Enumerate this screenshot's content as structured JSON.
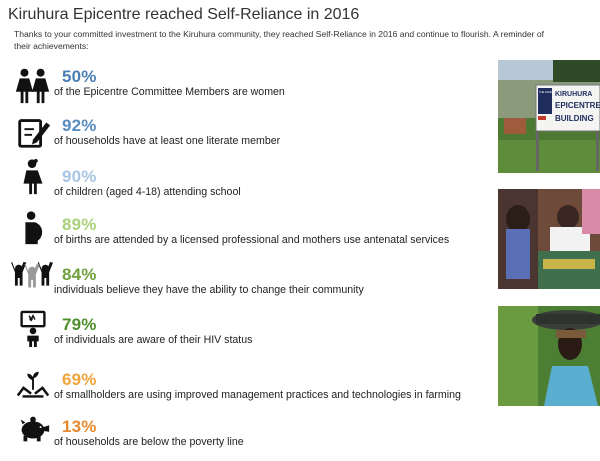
{
  "page": {
    "title": "Kiruhura Epicentre reached Self-Reliance in 2016",
    "intro_line1": "Thanks to your committed investment to the Kiruhura community, they reached Self-Reliance in 2016 and continue to flourish. A reminder of",
    "intro_line2": "their achievements:"
  },
  "stats": [
    {
      "icon": "women-group-icon",
      "percent": "50%",
      "color": "#4a7fb3",
      "text": "of the Epicentre Committee Members are women"
    },
    {
      "icon": "notepad-pen-icon",
      "percent": "92%",
      "color": "#5a8cc0",
      "text": "of households have at least one literate member"
    },
    {
      "icon": "schoolgirl-icon",
      "percent": "90%",
      "color": "#a9c4e2",
      "text": "of children (aged 4-18) attending school"
    },
    {
      "icon": "pregnant-woman-icon",
      "percent": "89%",
      "color": "#a9d17c",
      "text": "of births are attended by a licensed professional and mothers use antenatal services"
    },
    {
      "icon": "people-raised-arms-icon",
      "percent": "84%",
      "color": "#6ea13e",
      "text": "individuals believe they have the ability to change their community"
    },
    {
      "icon": "hiv-test-icon",
      "percent": "79%",
      "color": "#4e8f2c",
      "text": "of individuals are aware of their HIV status"
    },
    {
      "icon": "farming-hands-icon",
      "percent": "69%",
      "color": "#f0a43b",
      "text": "of smallholders are using improved management practices and technologies in farming"
    },
    {
      "icon": "piggy-bank-icon",
      "percent": "13%",
      "color": "#e58a2e",
      "text": "of households are below the poverty line"
    }
  ],
  "photos": {
    "sign_text_1": "KIRUHURA",
    "sign_text_2": "EPICENTRE",
    "sign_text_3": "BUILDING",
    "sign_small": "THE HUNGER PROJECT UGANDA"
  }
}
